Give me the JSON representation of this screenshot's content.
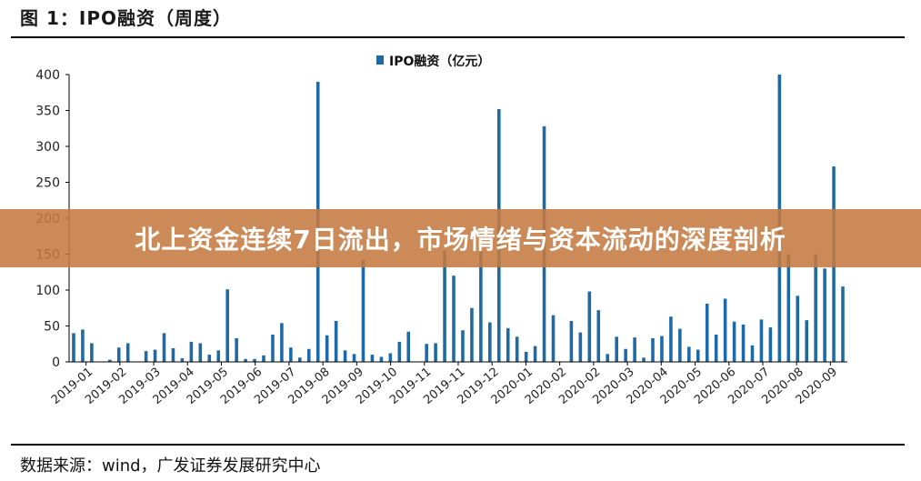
{
  "figure": {
    "title": "图 1：IPO融资（周度）",
    "source": "数据来源：wind，广发证券发展研究中心"
  },
  "banner": {
    "text": "北上资金连续7日流出，市场情绪与资本流动的深度剖析"
  },
  "colors": {
    "bar": "#1f6aa5",
    "axis": "#000000",
    "banner": "#c47a40"
  },
  "chart_data": {
    "type": "bar",
    "legend": {
      "label": "IPO融资（亿元）",
      "position": "top-center"
    },
    "ylim": [
      0,
      400
    ],
    "yticks": [
      0,
      50,
      100,
      150,
      200,
      250,
      300,
      350,
      400
    ],
    "grid": false,
    "xtick_labels": [
      "2019-01",
      "2019-02",
      "2019-03",
      "2019-04",
      "2019-05",
      "2019-06",
      "2019-07",
      "2019-08",
      "2019-09",
      "2019-10",
      "2019-11",
      "2019-11",
      "2019-12",
      "2020-01",
      "2020-02",
      "2020-02",
      "2020-03",
      "2020-04",
      "2020-05",
      "2020-06",
      "2020-07",
      "2020-08",
      "2020-09"
    ],
    "series": [
      {
        "name": "IPO融资（亿元）",
        "values": [
          40,
          45,
          26,
          0,
          3,
          20,
          26,
          0,
          15,
          17,
          40,
          19,
          5,
          28,
          26,
          10,
          16,
          101,
          33,
          4,
          4,
          9,
          38,
          54,
          20,
          6,
          18,
          390,
          37,
          57,
          16,
          11,
          142,
          10,
          7,
          12,
          28,
          42,
          0,
          25,
          26,
          155,
          120,
          44,
          75,
          155,
          55,
          352,
          47,
          35,
          14,
          22,
          328,
          65,
          0,
          57,
          41,
          98,
          72,
          11,
          35,
          18,
          34,
          6,
          33,
          36,
          63,
          46,
          21,
          17,
          81,
          38,
          88,
          56,
          52,
          23,
          59,
          48,
          400,
          150,
          92,
          58,
          150,
          130,
          272,
          105
        ]
      }
    ]
  }
}
